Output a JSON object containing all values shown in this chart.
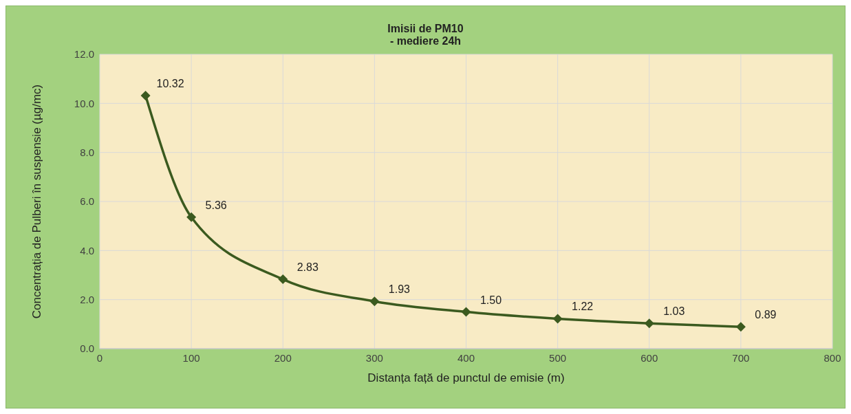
{
  "chart_data": {
    "type": "line",
    "title": "Imisii de PM10",
    "subtitle": "- mediere 24h",
    "xlabel": "Distanța față de punctul de emisie (m)",
    "ylabel": "Concentrația de Pulberi în suspensie (µg/mc)",
    "x": [
      50,
      100,
      200,
      300,
      400,
      500,
      600,
      700
    ],
    "series": [
      {
        "color": "#3b5a1f",
        "values": [
          10.32,
          5.36,
          2.83,
          1.93,
          1.5,
          1.22,
          1.03,
          0.89
        ],
        "value_labels": [
          "10.32",
          "5.36",
          "2.83",
          "1.93",
          "1.50",
          "1.22",
          "1.03",
          "0.89"
        ]
      }
    ],
    "xlim": [
      0,
      800
    ],
    "xticks": [
      0,
      100,
      200,
      300,
      400,
      500,
      600,
      700,
      800
    ],
    "ylim": [
      0,
      12
    ],
    "yticks": [
      {
        "value": 0,
        "label": "0.0"
      },
      {
        "value": 2,
        "label": "2.0"
      },
      {
        "value": 4,
        "label": "4.0"
      },
      {
        "value": 6,
        "label": "6.0"
      },
      {
        "value": 8,
        "label": "8.0"
      },
      {
        "value": 10,
        "label": "10.0"
      },
      {
        "value": 12,
        "label": "12.0"
      }
    ],
    "grid": true,
    "legend": false,
    "marker": "diamond",
    "line_style": "solid"
  }
}
